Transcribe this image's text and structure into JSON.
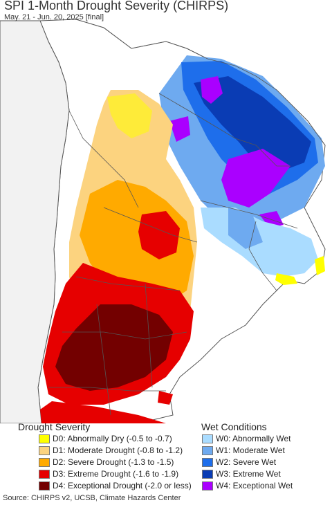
{
  "title": "SPI 1-Month Drought Severity (CHIRPS)",
  "subtitle": "May. 21 - Jun. 20, 2025 [final]",
  "legend_drought": {
    "heading": "Drought Severity",
    "items": [
      {
        "label": "D0: Abnormally Dry (-0.5 to -0.7)",
        "color": "#ffff00"
      },
      {
        "label": "D1: Moderate Drought (-0.8 to -1.2)",
        "color": "#fcd37f"
      },
      {
        "label": "D2: Severe Drought (-1.3 to -1.5)",
        "color": "#ffaa00"
      },
      {
        "label": "D3: Extreme Drought (-1.6 to -1.9)",
        "color": "#e60000"
      },
      {
        "label": "D4: Exceptional Drought (-2.0 or less)",
        "color": "#730000"
      }
    ]
  },
  "legend_wet": {
    "heading": "Wet Conditions",
    "items": [
      {
        "label": "W0: Abnormally Wet",
        "color": "#aadcff"
      },
      {
        "label": "W1: Moderate Wet",
        "color": "#6eaaf0"
      },
      {
        "label": "W2: Severe Wet",
        "color": "#1e6eeb"
      },
      {
        "label": "W3: Extreme Wet",
        "color": "#0a3cb4"
      },
      {
        "label": "W4: Exceptional Wet",
        "color": "#aa00ff"
      }
    ]
  },
  "footer": "Source: CHIRPS v2, UCSB, Climate Hazards Center",
  "colors": {
    "land": "#ffffff",
    "border": "#555555"
  }
}
